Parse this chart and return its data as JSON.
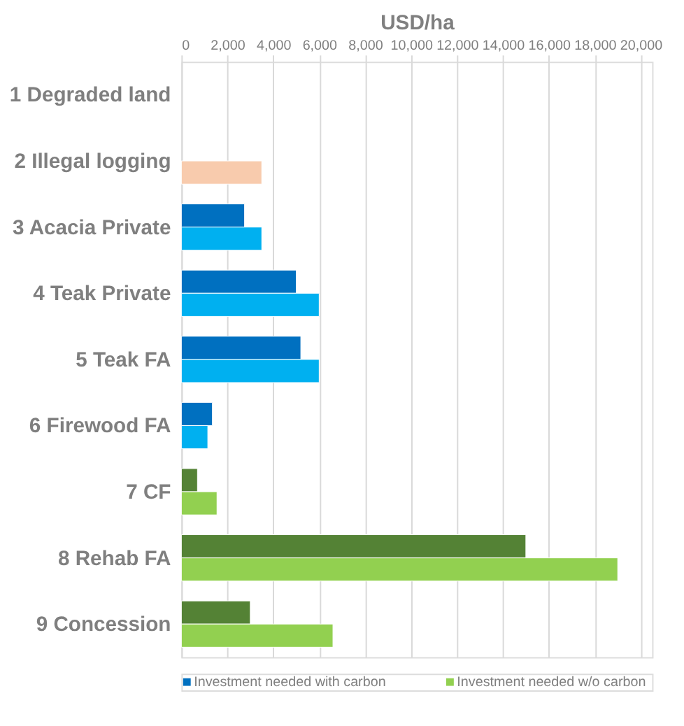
{
  "chart_data": {
    "type": "bar",
    "orientation": "horizontal",
    "xlabel": "USD/ha",
    "categories": [
      "1 Degraded land",
      "2 Illegal logging",
      "3 Acacia Private",
      "4 Teak Private",
      "5 Teak FA",
      "6 Firewood FA",
      "7 CF",
      "8 Rehab FA",
      "9 Concession"
    ],
    "series": [
      {
        "name": "Investment needed with carbon",
        "color": "#0070c0",
        "values": [
          null,
          null,
          2750,
          5000,
          5200,
          1350,
          700,
          15000,
          3000
        ],
        "colors": [
          "#0070c0",
          "#0070c0",
          "#0070c0",
          "#0070c0",
          "#0070c0",
          "#0070c0",
          "#548235",
          "#548235",
          "#548235"
        ]
      },
      {
        "name": "Investment needed w/o carbon",
        "color": "#92d050",
        "values": [
          null,
          3500,
          3500,
          6000,
          6000,
          1150,
          1550,
          19000,
          6600
        ],
        "colors": [
          "#92d050",
          "#f8cbad",
          "#00b0f0",
          "#00b0f0",
          "#00b0f0",
          "#00b0f0",
          "#92d050",
          "#92d050",
          "#92d050"
        ]
      }
    ],
    "xlim": [
      0,
      20500
    ],
    "xticks": [
      {
        "value": 0,
        "label": "0"
      },
      {
        "value": 2000,
        "label": "2,000"
      },
      {
        "value": 4000,
        "label": "4,000"
      },
      {
        "value": 6000,
        "label": "6,000"
      },
      {
        "value": 8000,
        "label": "8,000"
      },
      {
        "value": 10000,
        "label": "10,000"
      },
      {
        "value": 12000,
        "label": "12,000"
      },
      {
        "value": 14000,
        "label": "14,000"
      },
      {
        "value": 16000,
        "label": "16,000"
      },
      {
        "value": 18000,
        "label": "18,000"
      },
      {
        "value": 20000,
        "label": "20,000"
      }
    ],
    "grid": "x",
    "legend": "bottom"
  }
}
